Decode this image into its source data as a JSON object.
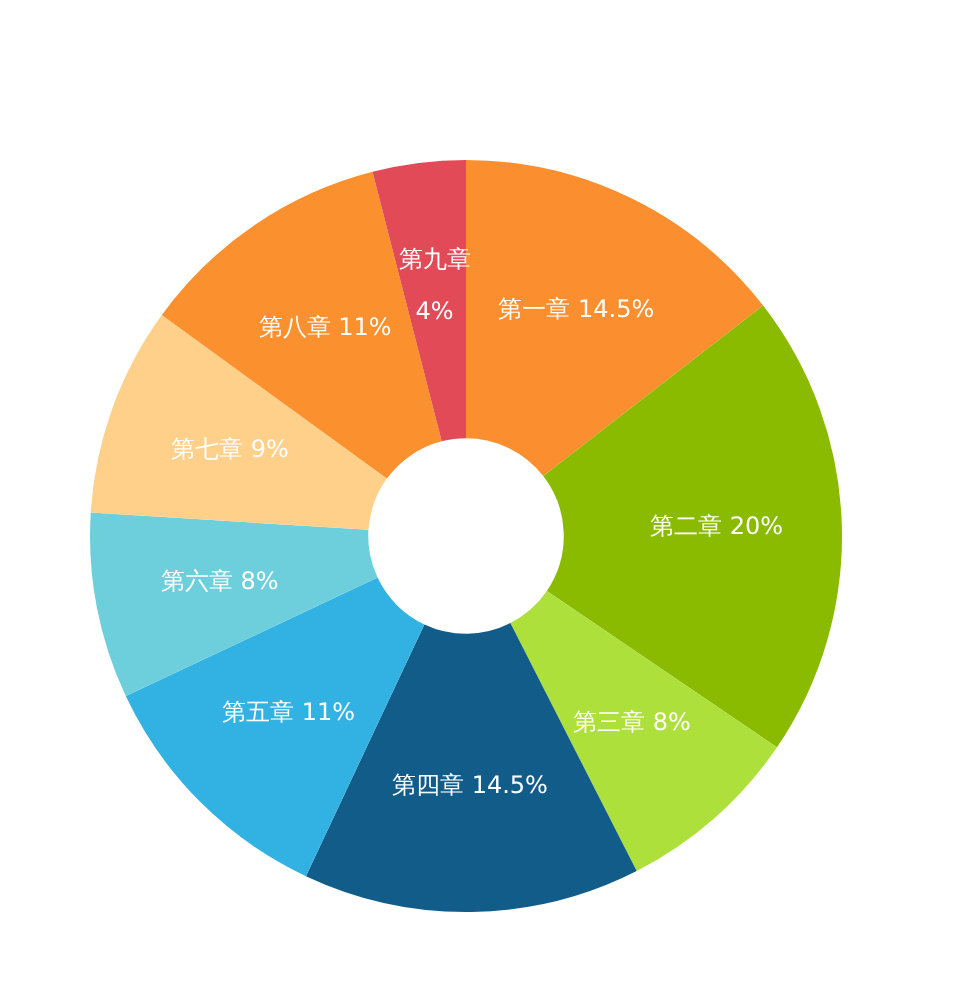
{
  "chart_data": {
    "type": "donut",
    "categories": [
      "第一章",
      "第二章",
      "第三章",
      "第四章",
      "第五章",
      "第六章",
      "第七章",
      "第八章",
      "第九章"
    ],
    "values": [
      14.5,
      20,
      8,
      14.5,
      11,
      8,
      9,
      11,
      4
    ],
    "value_labels": [
      "14.5%",
      "20%",
      "8%",
      "14.5%",
      "11%",
      "8%",
      "9%",
      "11%",
      "4%"
    ],
    "colors": [
      "#fb8f2f",
      "#8abb00",
      "#aee03c",
      "#125c8a",
      "#32b1e3",
      "#6ecfdc",
      "#ffd08a",
      "#fb902f",
      "#e24a58"
    ]
  }
}
